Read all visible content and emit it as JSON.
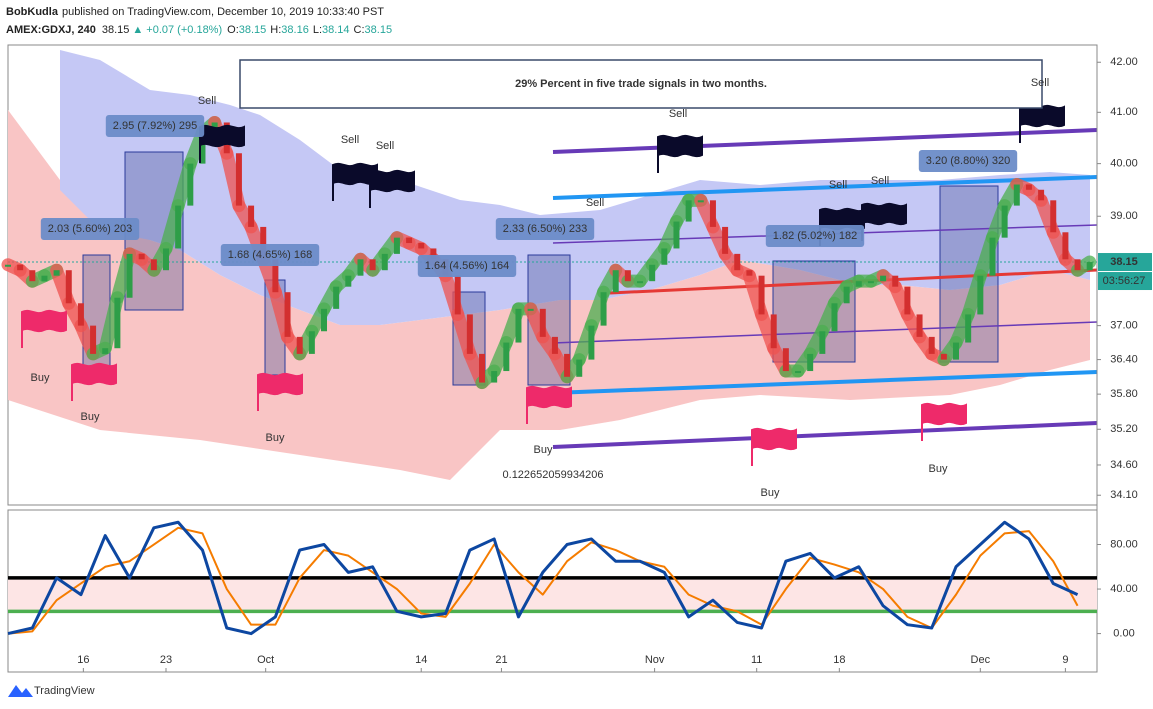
{
  "header": {
    "author": "BobKudla",
    "published": "published on TradingView.com, December 10, 2019 10:33:40 PST",
    "symbol": "AMEX:GDXJ, 240",
    "last": "38.15",
    "arrow": "▲",
    "change": "+0.07 (+0.18%)",
    "ohlc": [
      {
        "label": "O:",
        "value": "38.15"
      },
      {
        "label": "H:",
        "value": "38.16"
      },
      {
        "label": "L:",
        "value": "38.14"
      },
      {
        "label": "C:",
        "value": "38.15"
      }
    ]
  },
  "chart_data": [
    {
      "type": "line",
      "title": "29% Percent in five trade signals in two months.",
      "values": [
        38.1,
        38.0,
        37.8,
        37.9,
        38.0,
        37.4,
        37.0,
        36.5,
        36.6,
        37.5,
        38.3,
        38.2,
        38.0,
        38.4,
        39.2,
        40.0,
        40.6,
        40.8,
        40.2,
        39.2,
        38.8,
        38.2,
        37.6,
        36.8,
        36.5,
        36.9,
        37.3,
        37.7,
        37.9,
        38.2,
        38.0,
        38.3,
        38.6,
        38.5,
        38.4,
        38.2,
        37.9,
        37.2,
        36.5,
        36.0,
        36.2,
        36.7,
        37.3,
        37.3,
        36.8,
        36.5,
        36.1,
        36.4,
        37.0,
        37.6,
        38.0,
        37.8,
        37.8,
        38.1,
        38.4,
        38.9,
        39.3,
        39.3,
        38.8,
        38.3,
        38.0,
        37.9,
        37.2,
        36.6,
        36.2,
        36.2,
        36.5,
        36.9,
        37.4,
        37.7,
        37.8,
        37.8,
        37.9,
        37.7,
        37.2,
        36.8,
        36.5,
        36.4,
        36.7,
        37.2,
        37.9,
        38.6,
        39.2,
        39.6,
        39.5,
        39.3,
        38.7,
        38.2,
        38.0,
        38.15
      ],
      "xlim": [
        0,
        89.6
      ],
      "ylim": [
        33.94,
        42.35
      ],
      "log": true,
      "yticks": [
        {
          "value": 42,
          "label": "42.00"
        },
        {
          "value": 41,
          "label": "41.00"
        },
        {
          "value": 40,
          "label": "40.00"
        },
        {
          "value": 39,
          "label": "39.00"
        },
        {
          "value": 37,
          "label": "37.00"
        },
        {
          "value": 36.4,
          "label": "36.40"
        },
        {
          "value": 35.8,
          "label": "35.80"
        },
        {
          "value": 35.2,
          "label": "35.20"
        },
        {
          "value": 34.6,
          "label": "34.60"
        },
        {
          "value": 34.1,
          "label": "34.10"
        }
      ],
      "up_color": "#4caf50",
      "down_color": "#ef5350",
      "last_price_label": "38.15",
      "countdown": "03:56:27",
      "annotations": {
        "sell": [
          "Sell",
          "Sell",
          "Sell",
          "Sell",
          "Sell",
          "Sell",
          "Sell",
          "Sell"
        ],
        "buy": [
          "Buy",
          "Buy",
          "Buy",
          "Buy",
          "Buy",
          "Buy"
        ],
        "measures": [
          "2.95 (7.92%) 295",
          "2.03 (5.60%) 203",
          "1.68 (4.65%) 168",
          "1.64 (4.56%) 164",
          "2.33 (6.50%) 233",
          "1.82 (5.02%) 182",
          "3.20 (8.80%) 320"
        ],
        "note": "0.122652059934206"
      }
    },
    {
      "type": "line",
      "series": [
        {
          "color": "#0d47a1",
          "values": [
            0,
            5,
            50,
            35,
            88,
            50,
            95,
            100,
            75,
            5,
            0,
            15,
            75,
            80,
            55,
            60,
            20,
            15,
            18,
            75,
            85,
            15,
            55,
            80,
            85,
            65,
            65,
            55,
            15,
            30,
            10,
            5,
            65,
            72,
            50,
            60,
            25,
            8,
            5,
            60,
            80,
            100,
            85,
            45,
            35
          ]
        },
        {
          "color": "#f57c00",
          "values": [
            0,
            2,
            30,
            45,
            60,
            65,
            80,
            95,
            90,
            40,
            8,
            8,
            50,
            75,
            70,
            55,
            40,
            18,
            15,
            45,
            80,
            55,
            35,
            65,
            82,
            75,
            65,
            60,
            35,
            25,
            20,
            8,
            40,
            68,
            62,
            55,
            40,
            15,
            5,
            35,
            70,
            90,
            92,
            65,
            25
          ]
        }
      ],
      "xlim": [
        0,
        44.8
      ],
      "ylim": [
        -34.5,
        111
      ],
      "yticks": [
        {
          "value": 0,
          "label": "0.00"
        },
        {
          "value": 40,
          "label": "40.00"
        },
        {
          "value": 80,
          "label": "80.00"
        }
      ],
      "xticks": [
        {
          "value": 3.1,
          "label": "16"
        },
        {
          "value": 6.5,
          "label": "23"
        },
        {
          "value": 10.6,
          "label": "Oct"
        },
        {
          "value": 17,
          "label": "14"
        },
        {
          "value": 20.3,
          "label": "21"
        },
        {
          "value": 26.6,
          "label": "Nov"
        },
        {
          "value": 30.8,
          "label": "11"
        },
        {
          "value": 34.2,
          "label": "18"
        },
        {
          "value": 40,
          "label": "Dec"
        },
        {
          "value": 43.5,
          "label": "9"
        }
      ],
      "levels": [
        {
          "value": 50,
          "color": "#000000"
        },
        {
          "value": 20,
          "color": "#4caf50"
        }
      ]
    }
  ],
  "footer": {
    "brand": "TradingView"
  }
}
